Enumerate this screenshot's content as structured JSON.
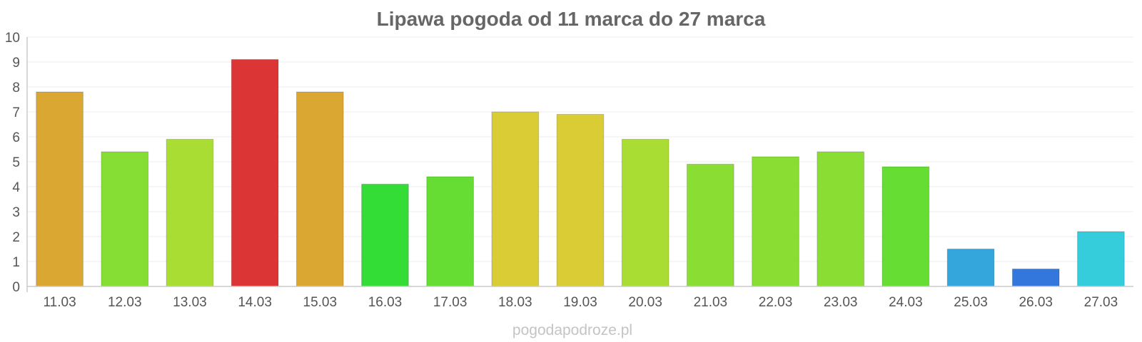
{
  "chart_data": {
    "type": "bar",
    "title": "Lipawa pogoda od 11 marca do 27 marca",
    "categories": [
      "11.03",
      "12.03",
      "13.03",
      "14.03",
      "15.03",
      "16.03",
      "17.03",
      "18.03",
      "19.03",
      "20.03",
      "21.03",
      "22.03",
      "23.03",
      "24.03",
      "25.03",
      "26.03",
      "27.03"
    ],
    "values": [
      7.8,
      5.4,
      5.9,
      9.1,
      7.8,
      4.1,
      4.4,
      7.0,
      6.9,
      5.9,
      4.9,
      5.2,
      5.4,
      4.8,
      1.5,
      0.7,
      2.2
    ],
    "colors": [
      "#dba733",
      "#86dd34",
      "#aadd33",
      "#dc3535",
      "#dba733",
      "#33dd35",
      "#65dd33",
      "#dacc34",
      "#dacc34",
      "#aadd33",
      "#89dd33",
      "#89dd33",
      "#89dd33",
      "#65dd33",
      "#35a6dc",
      "#3477dc",
      "#35ccdc"
    ],
    "ylim": [
      0,
      10
    ],
    "yticks": [
      0,
      1,
      2,
      3,
      4,
      5,
      6,
      7,
      8,
      9,
      10
    ],
    "xlabel": "",
    "ylabel": "",
    "grid": true
  },
  "watermark": "pogodapodroze.pl"
}
